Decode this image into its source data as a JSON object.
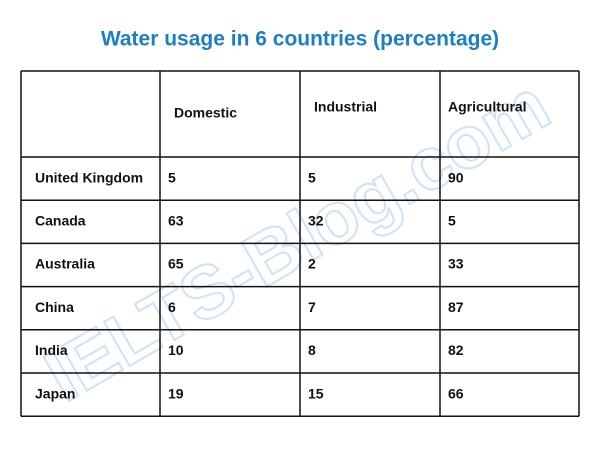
{
  "title": "Water usage in 6 countries (percentage)",
  "watermark": "IELTS-Blog.com",
  "table": {
    "header": [
      "Domestic",
      "Industrial",
      "Agricultural"
    ],
    "rows": [
      [
        "United Kingdom",
        5,
        5,
        90
      ],
      [
        "Canada",
        63,
        32,
        5
      ],
      [
        "Australia",
        65,
        2,
        33
      ],
      [
        "China",
        6,
        7,
        87
      ],
      [
        "India",
        10,
        8,
        82
      ],
      [
        "Japan",
        19,
        15,
        66
      ]
    ]
  }
}
